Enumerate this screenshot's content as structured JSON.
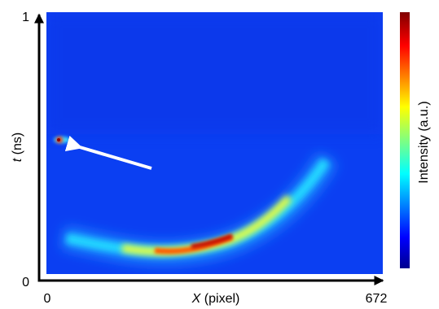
{
  "chart_data": {
    "type": "image",
    "xlabel_var": "X",
    "xlabel_unit": "(pixel)",
    "ylabel_var": "t",
    "ylabel_unit": "(ns)",
    "colorbar_label": "Intensity (a.u.)",
    "xlim": [
      0,
      672
    ],
    "xticks": [
      0,
      672
    ],
    "ylim": [
      0,
      1
    ],
    "yticks": [
      0,
      1
    ],
    "colormap": "jet"
  }
}
